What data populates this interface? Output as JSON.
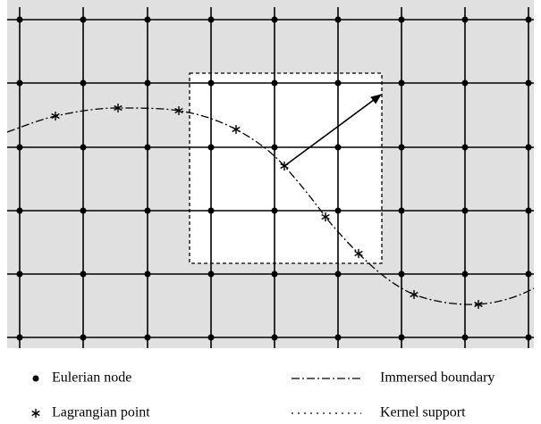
{
  "legend": {
    "items": [
      {
        "label": "Eulerian node"
      },
      {
        "label": "Lagrangian point"
      },
      {
        "label": "Immersed boundary"
      },
      {
        "label": "Kernel support"
      }
    ]
  }
}
